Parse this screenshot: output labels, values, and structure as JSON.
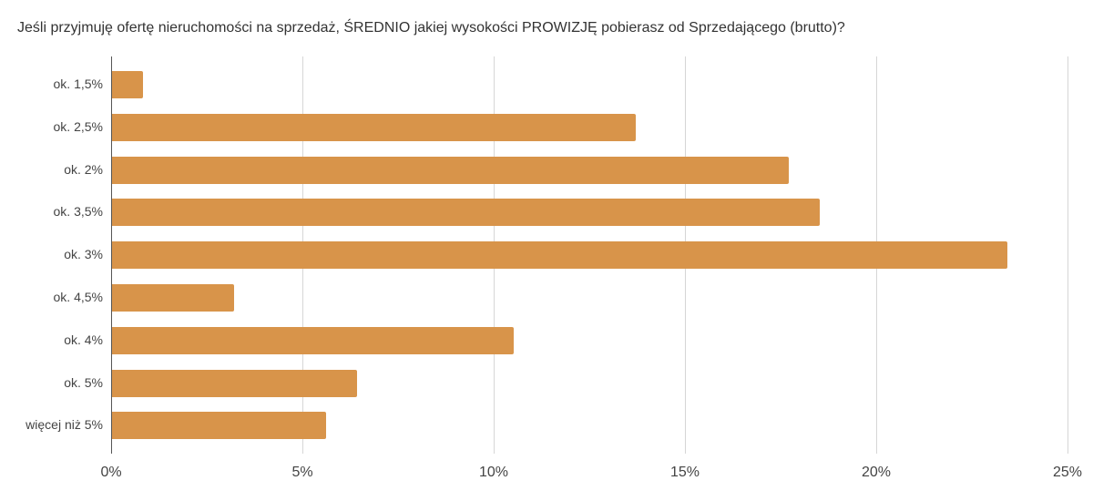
{
  "chart_data": {
    "type": "bar",
    "orientation": "horizontal",
    "title": "Jeśli przyjmuję ofertę nieruchomości na sprzedaż, ŚREDNIO jakiej wysokości PROWIZJĘ pobierasz od Sprzedającego (brutto)?",
    "xlabel": "",
    "ylabel": "",
    "categories": [
      "ok. 1,5%",
      "ok. 2,5%",
      "ok. 2%",
      "ok. 3,5%",
      "ok. 3%",
      "ok. 4,5%",
      "ok. 4%",
      "ok. 5%",
      "więcej niż 5%"
    ],
    "values": [
      0.8,
      13.7,
      17.7,
      18.5,
      23.4,
      3.2,
      10.5,
      6.4,
      5.6
    ],
    "xlim": [
      0,
      25
    ],
    "xticks": [
      "0%",
      "5%",
      "10%",
      "15%",
      "20%",
      "25%"
    ],
    "grid": true,
    "bar_color": "#d8944a",
    "legend": null
  }
}
